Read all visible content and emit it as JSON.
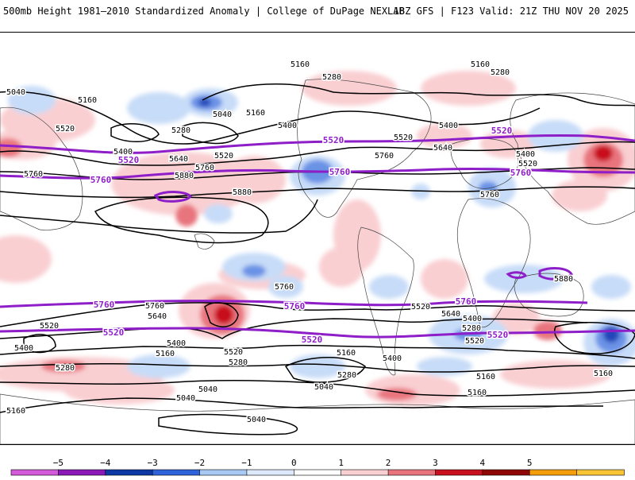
{
  "header": {
    "title": "500mb Height 1981–2010 Standardized Anomaly | College of DuPage NEXLAB",
    "run_info": "18Z GFS | F123 Valid: 21Z THU NOV 20 2025"
  },
  "map": {
    "black_contour_labels": [
      {
        "text": "5160"
      },
      {
        "text": "5160"
      },
      {
        "text": "5280"
      },
      {
        "text": "5280"
      },
      {
        "text": "5040"
      },
      {
        "text": "5160"
      },
      {
        "text": "5040"
      },
      {
        "text": "5160"
      },
      {
        "text": "5520"
      },
      {
        "text": "5280"
      },
      {
        "text": "5400"
      },
      {
        "text": "5400"
      },
      {
        "text": "5520"
      },
      {
        "text": "5640"
      },
      {
        "text": "5400"
      },
      {
        "text": "5640"
      },
      {
        "text": "5520"
      },
      {
        "text": "5520"
      },
      {
        "text": "5760"
      },
      {
        "text": "5880"
      },
      {
        "text": "5760"
      },
      {
        "text": "5880"
      },
      {
        "text": "5760"
      },
      {
        "text": "5760"
      },
      {
        "text": "5880"
      },
      {
        "text": "5760"
      },
      {
        "text": "5760"
      },
      {
        "text": "5640"
      },
      {
        "text": "5520"
      },
      {
        "text": "5400"
      },
      {
        "text": "5400"
      },
      {
        "text": "5160"
      },
      {
        "text": "5520"
      },
      {
        "text": "5280"
      },
      {
        "text": "5160"
      },
      {
        "text": "5280"
      },
      {
        "text": "5040"
      },
      {
        "text": "5040"
      },
      {
        "text": "5040"
      },
      {
        "text": "5160"
      },
      {
        "text": "5040"
      },
      {
        "text": "5160"
      },
      {
        "text": "5400"
      },
      {
        "text": "5520"
      },
      {
        "text": "5640"
      },
      {
        "text": "5280"
      },
      {
        "text": "5160"
      },
      {
        "text": "5160"
      },
      {
        "text": "5400"
      },
      {
        "text": "5280"
      },
      {
        "text": "5400"
      },
      {
        "text": "5520"
      }
    ],
    "purple_contour_labels": [
      {
        "text": "5520"
      },
      {
        "text": "5520"
      },
      {
        "text": "5520"
      },
      {
        "text": "5760"
      },
      {
        "text": "5760"
      },
      {
        "text": "5760"
      },
      {
        "text": "5760"
      },
      {
        "text": "5760"
      },
      {
        "text": "5760"
      },
      {
        "text": "5520"
      },
      {
        "text": "5520"
      },
      {
        "text": "5520"
      }
    ]
  },
  "colorbar": {
    "ticks": [
      "−5",
      "−4",
      "−3",
      "−2",
      "−1",
      "0",
      "1",
      "2",
      "3",
      "4",
      "5"
    ],
    "colors": [
      "#d35ad8",
      "#8a19b8",
      "#0d39a6",
      "#2f63d9",
      "#a9c9f5",
      "#dde9fb",
      "#ffffff",
      "#f9cfd2",
      "#e8747e",
      "#c8101e",
      "#8e0606",
      "#f59e0b",
      "#f8c537"
    ]
  }
}
